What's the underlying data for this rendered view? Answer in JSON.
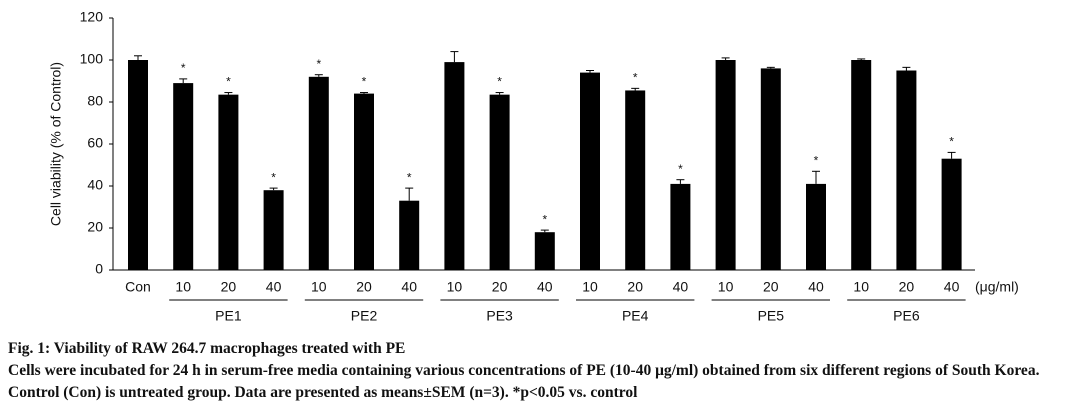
{
  "chart_data": {
    "type": "bar",
    "y_label": "Cell viability (% of Control)",
    "x_unit_label": "(μg/ml)",
    "categories": [
      "Con",
      "10",
      "20",
      "40",
      "10",
      "20",
      "40",
      "10",
      "20",
      "40",
      "10",
      "20",
      "40",
      "10",
      "20",
      "40",
      "10",
      "20",
      "40"
    ],
    "group_labels": [
      "PE1",
      "PE2",
      "PE3",
      "PE4",
      "PE5",
      "PE6"
    ],
    "values": [
      100,
      89,
      83.5,
      38,
      92,
      84,
      33,
      99,
      83.5,
      18,
      94,
      85.5,
      41,
      100,
      96,
      41,
      100,
      95,
      53
    ],
    "errors": [
      2,
      2,
      1,
      1,
      1,
      0.5,
      6,
      5,
      1,
      1,
      1,
      1,
      2,
      1,
      0.5,
      6,
      0.5,
      1.5,
      3
    ],
    "annotations": [
      null,
      "*",
      "*",
      "*",
      "*",
      "*",
      "*",
      null,
      "*",
      "*",
      null,
      "*",
      "*",
      null,
      null,
      "*",
      null,
      null,
      "*"
    ],
    "color": "#000000",
    "ylim": [
      0,
      120
    ],
    "yticks": [
      0,
      20,
      40,
      60,
      80,
      100,
      120
    ]
  },
  "caption": {
    "title": "Fig. 1: Viability of RAW 264.7 macrophages treated with PE",
    "text": "Cells were incubated for 24 h in serum-free media containing various concentrations of PE (10-40 μg/ml) obtained from six different regions of South Korea. Control (Con) is untreated group. Data are presented as means±SEM (n=3). *p<0.05 vs. control"
  }
}
